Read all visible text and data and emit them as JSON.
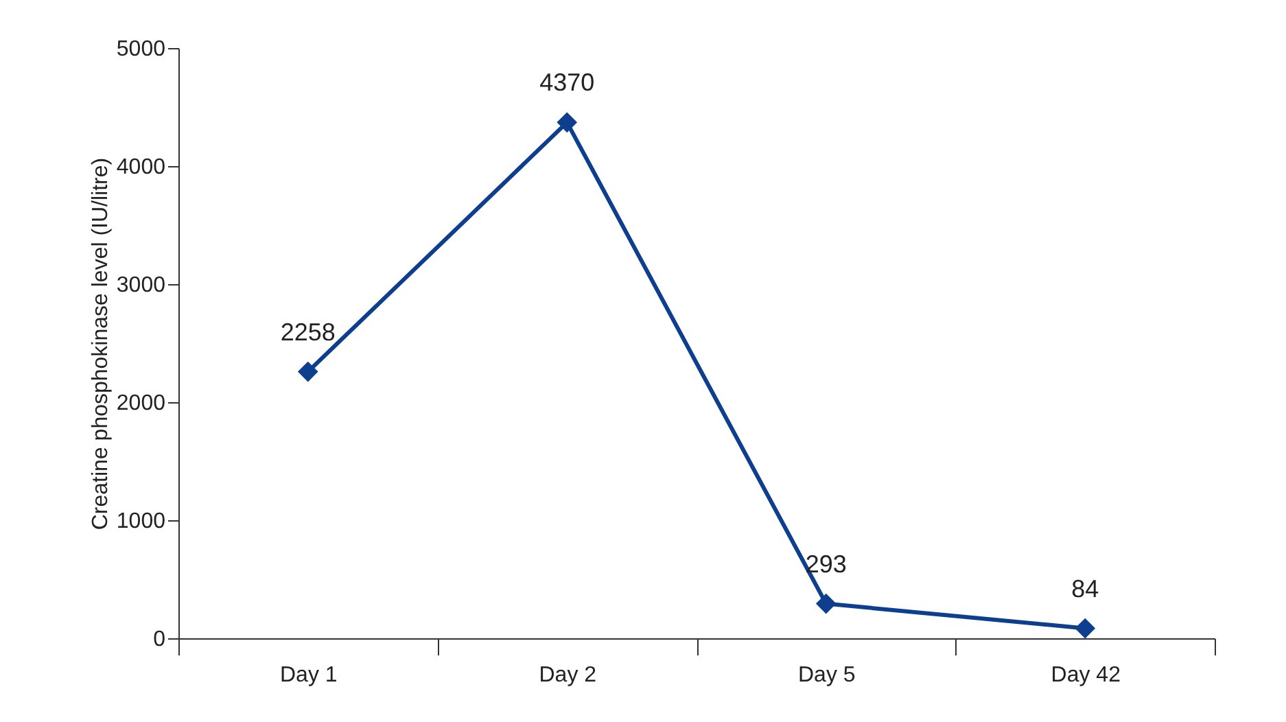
{
  "chart_data": {
    "type": "line",
    "ylabel": "Creatine phosphokinase level (IU/litre)",
    "categories": [
      "Day 1",
      "Day 2",
      "Day 5",
      "Day 42"
    ],
    "series": [
      {
        "color": "#0e3f8e",
        "values": [
          2258,
          4370,
          293,
          84
        ]
      }
    ],
    "ylim": [
      0,
      5000
    ],
    "yticks": [
      0,
      1000,
      2000,
      3000,
      4000,
      5000
    ],
    "grid": false,
    "legend": false,
    "marker": "diamond",
    "line_style": "solid",
    "data_labels": true
  }
}
